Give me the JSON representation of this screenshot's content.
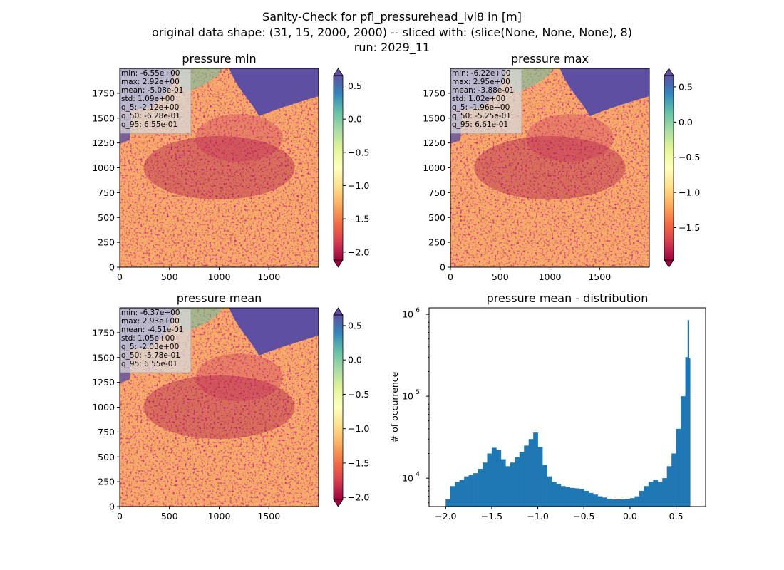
{
  "figure": {
    "title_lines": [
      "Sanity-Check for pfl_pressurehead_lvl8 in [m]",
      "original data shape: (31, 15, 2000, 2000) -- sliced with: (slice(None, None, None), 8)",
      "run: 2029_11"
    ]
  },
  "chart_data": [
    {
      "type": "heatmap",
      "title": "pressure min",
      "x_ticks": [
        "0",
        "500",
        "1000",
        "1500"
      ],
      "y_ticks": [
        "0",
        "250",
        "500",
        "750",
        "1000",
        "1250",
        "1500",
        "1750"
      ],
      "xlim": [
        0,
        2000
      ],
      "ylim": [
        0,
        2000
      ],
      "colormap": "Spectral",
      "colorbar_range": [
        -2.12,
        0.655
      ],
      "colorbar_ticks": [
        "0.5",
        "0.0",
        "−0.5",
        "−1.0",
        "−1.5",
        "−2.0"
      ],
      "colorbar_tick_values": [
        0.5,
        0.0,
        -0.5,
        -1.0,
        -1.5,
        -2.0
      ],
      "stats": [
        "min: -6.55e+00",
        "max: 2.92e+00",
        "mean: -5.08e-01",
        "std: 1.09e+00",
        "q_5: -2.12e+00",
        "q_50: -6.28e-01",
        "q_95: 6.55e-01"
      ]
    },
    {
      "type": "heatmap",
      "title": "pressure max",
      "x_ticks": [
        "0",
        "500",
        "1000",
        "1500"
      ],
      "y_ticks": [
        "0",
        "250",
        "500",
        "750",
        "1000",
        "1250",
        "1500",
        "1750"
      ],
      "xlim": [
        0,
        2000
      ],
      "ylim": [
        0,
        2000
      ],
      "colormap": "Spectral",
      "colorbar_range": [
        -1.96,
        0.661
      ],
      "colorbar_ticks": [
        "0.5",
        "0.0",
        "−0.5",
        "−1.0",
        "−1.5"
      ],
      "colorbar_tick_values": [
        0.5,
        0.0,
        -0.5,
        -1.0,
        -1.5
      ],
      "stats": [
        "min: -6.22e+00",
        "max: 2.95e+00",
        "mean: -3.88e-01",
        "std: 1.02e+00",
        "q_5: -1.96e+00",
        "q_50: -5.25e-01",
        "q_95: 6.61e-01"
      ]
    },
    {
      "type": "heatmap",
      "title": "pressure mean",
      "x_ticks": [
        "0",
        "500",
        "1000",
        "1500"
      ],
      "y_ticks": [
        "0",
        "250",
        "500",
        "750",
        "1000",
        "1250",
        "1500",
        "1750"
      ],
      "xlim": [
        0,
        2000
      ],
      "ylim": [
        0,
        2000
      ],
      "colormap": "Spectral",
      "colorbar_range": [
        -2.03,
        0.655
      ],
      "colorbar_ticks": [
        "0.5",
        "0.0",
        "−0.5",
        "−1.0",
        "−1.5",
        "−2.0"
      ],
      "colorbar_tick_values": [
        0.5,
        0.0,
        -0.5,
        -1.0,
        -1.5,
        -2.0
      ],
      "stats": [
        "min: -6.37e+00",
        "max: 2.93e+00",
        "mean: -4.51e-01",
        "std: 1.05e+00",
        "q_5: -2.03e+00",
        "q_50: -5.78e-01",
        "q_95: 6.55e-01"
      ]
    },
    {
      "type": "bar",
      "title": "pressure mean - distribution",
      "ylabel": "# of occurrence",
      "xlabel": "",
      "yscale": "log",
      "xlim": [
        -2.18,
        0.82
      ],
      "ylim": [
        4500,
        1200000
      ],
      "x_ticks": [
        "−2.0",
        "−1.5",
        "−1.0",
        "−0.5",
        "0.0",
        "0.5"
      ],
      "x_tick_values": [
        -2.0,
        -1.5,
        -1.0,
        -0.5,
        0.0,
        0.5
      ],
      "y_ticks": [
        "10^4",
        "10^5",
        "10^6"
      ],
      "y_tick_values": [
        10000,
        100000,
        1000000
      ],
      "bar_color": "#1f77b4",
      "bins": [
        -2.0,
        -1.95,
        -1.9,
        -1.85,
        -1.8,
        -1.75,
        -1.7,
        -1.65,
        -1.6,
        -1.55,
        -1.5,
        -1.45,
        -1.4,
        -1.35,
        -1.3,
        -1.25,
        -1.2,
        -1.15,
        -1.1,
        -1.05,
        -1.0,
        -0.95,
        -0.9,
        -0.85,
        -0.8,
        -0.75,
        -0.7,
        -0.65,
        -0.6,
        -0.55,
        -0.5,
        -0.45,
        -0.4,
        -0.35,
        -0.3,
        -0.25,
        -0.2,
        -0.15,
        -0.1,
        -0.05,
        0.0,
        0.05,
        0.1,
        0.15,
        0.2,
        0.25,
        0.3,
        0.35,
        0.4,
        0.45,
        0.5,
        0.55,
        0.6,
        0.625,
        0.64
      ],
      "values": [
        5500,
        8000,
        9000,
        9500,
        10500,
        11000,
        11500,
        13000,
        15500,
        20000,
        23500,
        22000,
        17000,
        14000,
        15500,
        18000,
        21000,
        25000,
        30000,
        36000,
        24000,
        14500,
        10500,
        9000,
        8500,
        8000,
        7800,
        7600,
        7500,
        7400,
        7000,
        6600,
        6300,
        6000,
        5800,
        5600,
        5500,
        5500,
        5500,
        5600,
        5700,
        6000,
        7000,
        8000,
        9000,
        9500,
        9000,
        10000,
        14000,
        20000,
        40000,
        100000,
        300000,
        850000,
        290000
      ]
    }
  ]
}
